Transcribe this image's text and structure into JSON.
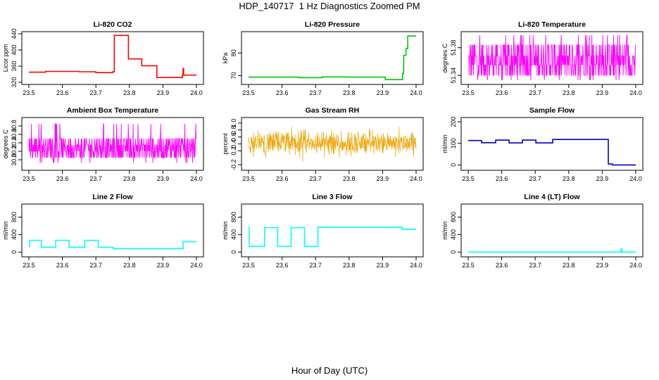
{
  "figure": {
    "title": "HDP_140717  1 Hz Diagnostics Zoomed PM",
    "xlabel": "Hour of Day (UTC)"
  },
  "chart_data": [
    {
      "type": "line",
      "title": "Li-820 CO2",
      "xlabel": "",
      "ylabel": "Licor ppm",
      "xlim": [
        23.5,
        24.0
      ],
      "ylim": [
        320,
        440
      ],
      "xticks": [
        "23.5",
        "23.6",
        "23.7",
        "23.8",
        "23.9",
        "24.0"
      ],
      "yticks": [
        320,
        360,
        400,
        440
      ],
      "ytick_labels": [
        "320",
        "360",
        "400",
        "440"
      ],
      "color": "#ff0000",
      "noise": 0,
      "series": [
        {
          "steps": [
            [
              23.5,
              345
            ],
            [
              23.548,
              345
            ],
            [
              23.55,
              347
            ],
            [
              23.65,
              346
            ],
            [
              23.7,
              344
            ],
            [
              23.75,
              346
            ],
            [
              23.755,
              436
            ],
            [
              23.795,
              436
            ],
            [
              23.797,
              378
            ],
            [
              23.835,
              378
            ],
            [
              23.837,
              361
            ],
            [
              23.88,
              361
            ],
            [
              23.882,
              332
            ],
            [
              23.955,
              332
            ],
            [
              23.958,
              338
            ],
            [
              23.96,
              354
            ],
            [
              23.962,
              338
            ],
            [
              24.0,
              338
            ]
          ]
        }
      ]
    },
    {
      "type": "line",
      "title": "Li-820 Pressure",
      "xlabel": "",
      "ylabel": "kPa",
      "xlim": [
        23.5,
        24.0
      ],
      "ylim": [
        67,
        88.5
      ],
      "xticks": [
        "23.5",
        "23.6",
        "23.7",
        "23.8",
        "23.9",
        "24.0"
      ],
      "yticks": [
        70,
        80
      ],
      "ytick_labels": [
        "70",
        "80"
      ],
      "color": "#00c800",
      "noise": 0,
      "series": [
        {
          "steps": [
            [
              23.5,
              69.3
            ],
            [
              23.65,
              69.1
            ],
            [
              23.72,
              69.4
            ],
            [
              23.8,
              69.3
            ],
            [
              23.905,
              69.2
            ],
            [
              23.908,
              68.2
            ],
            [
              23.952,
              68.2
            ],
            [
              23.96,
              71
            ],
            [
              23.963,
              79
            ],
            [
              23.97,
              82
            ],
            [
              23.975,
              87.5
            ],
            [
              24.0,
              87.5
            ]
          ]
        }
      ]
    },
    {
      "type": "line",
      "title": "Li-820 Temperature",
      "xlabel": "",
      "ylabel": "degrees C",
      "xlim": [
        23.5,
        24.0
      ],
      "ylim": [
        51.33,
        51.4
      ],
      "xticks": [
        "23.5",
        "23.6",
        "23.7",
        "23.8",
        "23.9",
        "24.0"
      ],
      "yticks": [
        51.34,
        51.38
      ],
      "ytick_labels": [
        "51.34",
        "51.38"
      ],
      "color": "#ff00ff",
      "noise": 1,
      "series": [
        {
          "levels": [
            51.34,
            51.355,
            51.368,
            51.384
          ],
          "spikes": [
            51.333,
            51.398
          ]
        }
      ]
    },
    {
      "type": "line",
      "title": "Ambient Box Temperature",
      "xlabel": "",
      "ylabel": "degrees C",
      "xlim": [
        23.5,
        24.0
      ],
      "ylim": [
        29.8,
        30.95
      ],
      "xticks": [
        "23.5",
        "23.6",
        "23.7",
        "23.8",
        "23.9",
        "24.0"
      ],
      "yticks": [
        30.0,
        30.2,
        30.4,
        30.6,
        30.8
      ],
      "ytick_labels": [
        "30.0",
        "30.2",
        "30.4",
        "30.6",
        "30.8"
      ],
      "color": "#ff00ff",
      "noise": 1,
      "series": [
        {
          "levels": [
            30.05,
            30.2,
            30.35,
            30.5
          ],
          "spikes": [
            29.93,
            30.85
          ]
        }
      ]
    },
    {
      "type": "line",
      "title": "Gas Stream RH",
      "xlabel": "",
      "ylabel": "percent",
      "xlim": [
        23.5,
        24.0
      ],
      "ylim": [
        -0.3,
        1.1
      ],
      "xticks": [
        "23.5",
        "23.6",
        "23.7",
        "23.8",
        "23.9",
        "24.0"
      ],
      "yticks": [
        -0.2,
        0.2,
        0.4,
        0.6,
        0.8,
        1.0
      ],
      "ytick_labels": [
        "-0.2",
        "0.2",
        "0.4",
        "0.6",
        "0.8",
        "1.0"
      ],
      "color": "#ffa500",
      "noise": 2,
      "series": [
        {
          "center": 0.42,
          "spread": 0.42
        }
      ]
    },
    {
      "type": "line",
      "title": "Sample Flow",
      "xlabel": "",
      "ylabel": "ml/min",
      "xlim": [
        23.5,
        24.0
      ],
      "ylim": [
        -15,
        210
      ],
      "xticks": [
        "23.5",
        "23.6",
        "23.7",
        "23.8",
        "23.9",
        "24.0"
      ],
      "yticks": [
        0,
        100,
        200
      ],
      "ytick_labels": [
        "0",
        "100",
        "200"
      ],
      "color": "#0000cc",
      "noise": 0,
      "series": [
        {
          "steps": [
            [
              23.5,
              113
            ],
            [
              23.538,
              113
            ],
            [
              23.54,
              103
            ],
            [
              23.58,
              103
            ],
            [
              23.582,
              115
            ],
            [
              23.62,
              115
            ],
            [
              23.622,
              102
            ],
            [
              23.66,
              102
            ],
            [
              23.662,
              115
            ],
            [
              23.7,
              115
            ],
            [
              23.702,
              102
            ],
            [
              23.75,
              102
            ],
            [
              23.752,
              118
            ],
            [
              23.912,
              118
            ],
            [
              23.918,
              5
            ],
            [
              23.93,
              0
            ],
            [
              24.0,
              0
            ]
          ]
        }
      ]
    },
    {
      "type": "line",
      "title": "Line 2 Flow",
      "xlabel": "",
      "ylabel": "ml/min",
      "xlim": [
        23.5,
        24.0
      ],
      "ylim": [
        -60,
        1050
      ],
      "xticks": [
        "23.5",
        "23.6",
        "23.7",
        "23.8",
        "23.9",
        "24.0"
      ],
      "yticks": [
        0,
        400,
        800
      ],
      "ytick_labels": [
        "0",
        "400",
        "800"
      ],
      "color": "#00ffff",
      "noise": 0,
      "series": [
        {
          "steps": [
            [
              23.5,
              130
            ],
            [
              23.502,
              270
            ],
            [
              23.535,
              270
            ],
            [
              23.537,
              110
            ],
            [
              23.578,
              110
            ],
            [
              23.58,
              270
            ],
            [
              23.618,
              270
            ],
            [
              23.62,
              110
            ],
            [
              23.665,
              110
            ],
            [
              23.667,
              270
            ],
            [
              23.705,
              270
            ],
            [
              23.707,
              110
            ],
            [
              23.75,
              110
            ],
            [
              23.752,
              80
            ],
            [
              23.958,
              80
            ],
            [
              23.96,
              240
            ],
            [
              24.0,
              240
            ]
          ]
        }
      ]
    },
    {
      "type": "line",
      "title": "Line 3 Flow",
      "xlabel": "",
      "ylabel": "ml/min",
      "xlim": [
        23.5,
        24.0
      ],
      "ylim": [
        -60,
        1050
      ],
      "xticks": [
        "23.5",
        "23.6",
        "23.7",
        "23.8",
        "23.9",
        "24.0"
      ],
      "yticks": [
        0,
        400,
        800
      ],
      "ytick_labels": [
        "0",
        "400",
        "800"
      ],
      "color": "#00ffff",
      "noise": 0,
      "series": [
        {
          "steps": [
            [
              23.5,
              560
            ],
            [
              23.502,
              130
            ],
            [
              23.545,
              130
            ],
            [
              23.548,
              560
            ],
            [
              23.585,
              560
            ],
            [
              23.587,
              130
            ],
            [
              23.625,
              130
            ],
            [
              23.627,
              560
            ],
            [
              23.665,
              560
            ],
            [
              23.667,
              130
            ],
            [
              23.705,
              130
            ],
            [
              23.707,
              570
            ],
            [
              23.955,
              570
            ],
            [
              23.958,
              520
            ],
            [
              24.0,
              520
            ]
          ]
        }
      ]
    },
    {
      "type": "line",
      "title": "Line 4 (LT) Flow",
      "xlabel": "",
      "ylabel": "ml/min",
      "xlim": [
        23.5,
        24.0
      ],
      "ylim": [
        -60,
        1050
      ],
      "xticks": [
        "23.5",
        "23.6",
        "23.7",
        "23.8",
        "23.9",
        "24.0"
      ],
      "yticks": [
        0,
        400,
        800
      ],
      "ytick_labels": [
        "0",
        "400",
        "800"
      ],
      "color": "#00ffff",
      "noise": 0,
      "series": [
        {
          "steps": [
            [
              23.5,
              0
            ],
            [
              23.955,
              0
            ],
            [
              23.956,
              80
            ],
            [
              23.958,
              0
            ],
            [
              24.0,
              0
            ]
          ]
        }
      ]
    }
  ]
}
